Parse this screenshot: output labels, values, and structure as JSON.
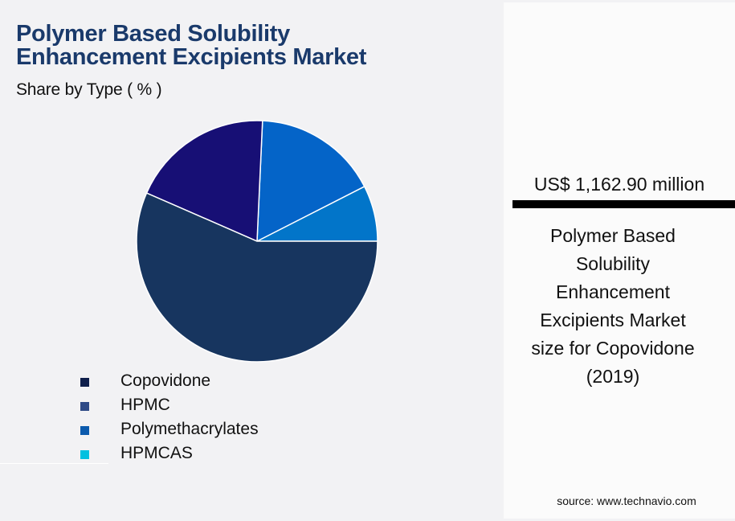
{
  "header": {
    "title_line1": "Polymer Based Solubility",
    "title_line2": "Enhancement Excipients Market",
    "subtitle": "Share by Type ( % )"
  },
  "legend": [
    {
      "label": "Copovidone",
      "color": "#0f1f4b"
    },
    {
      "label": "HPMC",
      "color": "#2e4a86"
    },
    {
      "label": "Polymethacrylates",
      "color": "#0b5aad"
    },
    {
      "label": "HPMCAS",
      "color": "#00c0e0"
    }
  ],
  "side_panel": {
    "value": "US$ 1,162.90 million",
    "caption_lines": [
      "Polymer Based",
      "Solubility",
      "Enhancement",
      "Excipients Market",
      "size for Copovidone",
      "(2019)"
    ],
    "source": "source: www.technavio.com"
  },
  "chart_data": {
    "type": "pie",
    "title": "Polymer Based Solubility Enhancement Excipients Market",
    "subtitle": "Share by Type ( % )",
    "categories": [
      "Copovidone",
      "HPMC",
      "Polymethacrylates",
      "HPMCAS"
    ],
    "values": [
      56.6,
      19.2,
      16.8,
      7.5
    ],
    "slice_colors": [
      "#17355f",
      "#170f75",
      "#0464c8",
      "#0275c9"
    ],
    "start_angle_deg": 0,
    "direction": "counter-clockwise",
    "legend_position": "bottom-left",
    "annotation": "US$ 1,162.90 million — Polymer Based Solubility Enhancement Excipients Market size for Copovidone (2019)"
  }
}
